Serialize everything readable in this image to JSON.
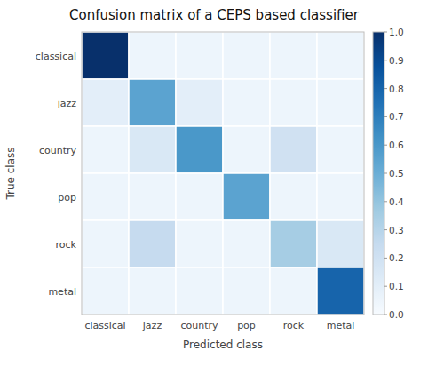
{
  "chart_data": {
    "type": "heatmap",
    "title": "Confusion matrix of a CEPS based classifier",
    "x_label": "Predicted class",
    "y_label": "True class",
    "categories": [
      "classical",
      "jazz",
      "country",
      "pop",
      "rock",
      "metal"
    ],
    "values": [
      [
        1.0,
        0.05,
        0.05,
        0.05,
        0.05,
        0.05
      ],
      [
        0.1,
        0.55,
        0.1,
        0.05,
        0.05,
        0.05
      ],
      [
        0.05,
        0.15,
        0.6,
        0.05,
        0.2,
        0.05
      ],
      [
        0.05,
        0.05,
        0.05,
        0.55,
        0.05,
        0.05
      ],
      [
        0.05,
        0.25,
        0.05,
        0.05,
        0.35,
        0.15
      ],
      [
        0.05,
        0.05,
        0.05,
        0.05,
        0.05,
        0.8
      ]
    ],
    "colorbar_lim": [
      0.0,
      1.0
    ],
    "colorbar_ticks": [
      {
        "value": 0.0,
        "label": "0.0"
      },
      0.1,
      0.2,
      0.3,
      0.4,
      0.5,
      0.6,
      0.7,
      0.8,
      0.9,
      {
        "value": 1.0,
        "label": "1.0"
      }
    ]
  }
}
